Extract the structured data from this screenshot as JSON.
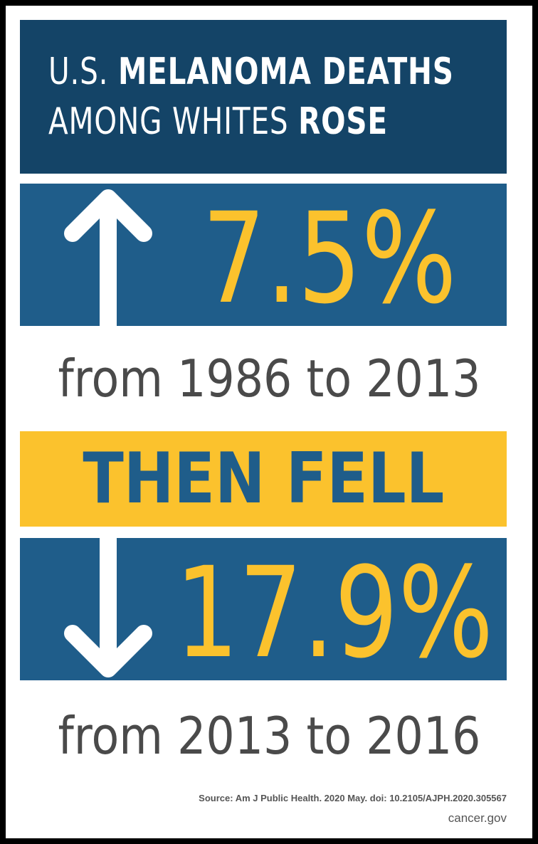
{
  "header": {
    "line1_light": "U.S. ",
    "line1_bold": "MELANOMA DEATHS",
    "line2_light": "AMONG WHITES ",
    "line2_bold": "ROSE"
  },
  "rise": {
    "value": "7.5%",
    "range": "from 1986 to 2013",
    "icon": "arrow-up-icon"
  },
  "middle": {
    "label": "THEN FELL"
  },
  "fall": {
    "value": "17.9%",
    "range": "from 2013 to 2016",
    "icon": "arrow-down-icon"
  },
  "footer": {
    "source": "Source: Am J Public Health. 2020 May. doi: 10.2105/AJPH.2020.305567",
    "site": "cancer.gov"
  },
  "colors": {
    "navy": "#144467",
    "blue": "#1f5d8a",
    "yellow": "#fbc22d",
    "gray_text": "#4a4a4a"
  }
}
